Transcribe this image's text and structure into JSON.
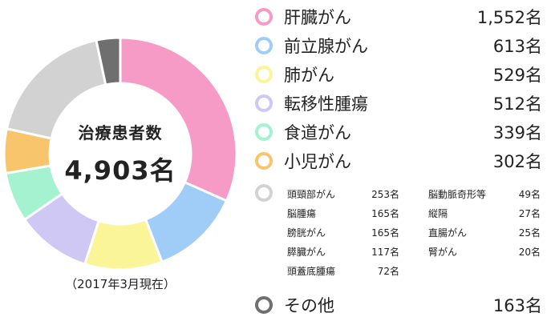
{
  "center": {
    "title": "治療患者数",
    "total": "4,903名"
  },
  "as_of": "（2017年3月現在）",
  "legend_items": [
    {
      "label": "肝臓がん",
      "count": "1,552名",
      "color": "#f59bc6"
    },
    {
      "label": "前立腺がん",
      "count": "613名",
      "color": "#9fcdf7"
    },
    {
      "label": "肺がん",
      "count": "529名",
      "color": "#fbf59a"
    },
    {
      "label": "転移性腫瘍",
      "count": "512名",
      "color": "#cfc8f4"
    },
    {
      "label": "食道がん",
      "count": "339名",
      "color": "#a4f2cf"
    },
    {
      "label": "小児がん",
      "count": "302名",
      "color": "#f8c56c"
    }
  ],
  "other_group_color": "#d2d2d2",
  "other_group_items": [
    {
      "label": "頭頸部がん",
      "count": "253名"
    },
    {
      "label": "脳動脈奇形等",
      "count": "49名"
    },
    {
      "label": "脳腫瘍",
      "count": "165名"
    },
    {
      "label": "縦隔",
      "count": "27名"
    },
    {
      "label": "膀胱がん",
      "count": "165名"
    },
    {
      "label": "直腸がん",
      "count": "25名"
    },
    {
      "label": "膵臓がん",
      "count": "117名"
    },
    {
      "label": "腎がん",
      "count": "20名"
    },
    {
      "label": "頭蓋底腫瘍",
      "count": "72名"
    }
  ],
  "misc_item": {
    "label": "その他",
    "count": "163名",
    "color": "#6f6f6f"
  },
  "chart_data": {
    "type": "pie",
    "title": "治療患者数",
    "total": 4903,
    "unit": "名",
    "slices": [
      {
        "label": "肝臓がん",
        "value": 1552,
        "color": "#f59bc6"
      },
      {
        "label": "前立腺がん",
        "value": 613,
        "color": "#9fcdf7"
      },
      {
        "label": "肺がん",
        "value": 529,
        "color": "#fbf59a"
      },
      {
        "label": "転移性腫瘍",
        "value": 512,
        "color": "#cfc8f4"
      },
      {
        "label": "食道がん",
        "value": 339,
        "color": "#a4f2cf"
      },
      {
        "label": "小児がん",
        "value": 302,
        "color": "#f8c56c"
      },
      {
        "label": "頭頸部がん・脳腫瘍・膀胱がん・膵臓がん・頭蓋底腫瘍・脳動脈奇形等・縦隔・直腸がん・腎がん",
        "value": 893,
        "color": "#d2d2d2"
      },
      {
        "label": "その他",
        "value": 163,
        "color": "#6f6f6f"
      }
    ]
  }
}
